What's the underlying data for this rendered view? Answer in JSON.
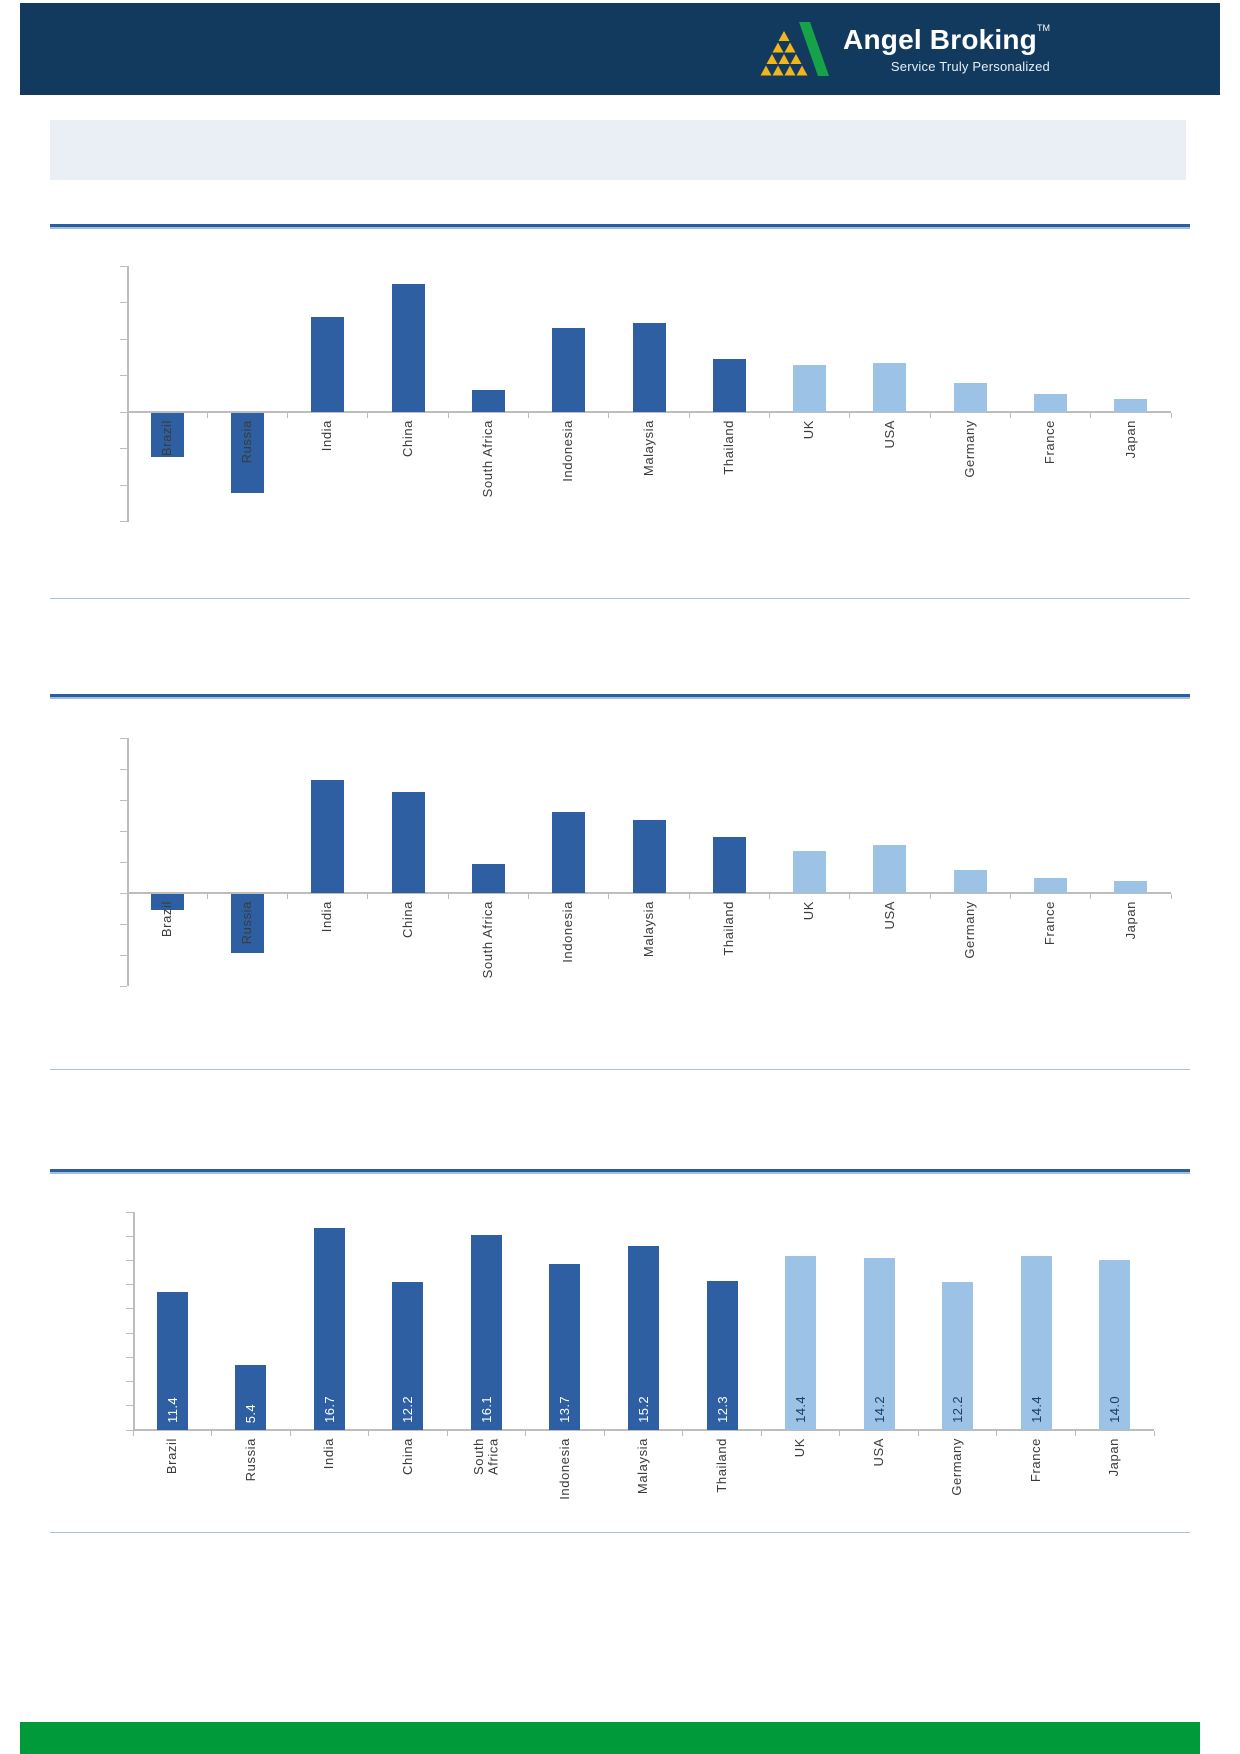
{
  "header": {
    "brand": "Angel Broking",
    "trademark": "TM",
    "tagline": "Service Truly Personalized",
    "colors": {
      "bar": "#123a5e",
      "logo_gold": "#f3b51a",
      "logo_green": "#16a348"
    }
  },
  "title_box": {
    "text": ""
  },
  "colors": {
    "bar_emerging": "#2e5fa3",
    "bar_developed": "#9cc2e5",
    "data_label_on_dark": "#ffffff",
    "data_label_on_light": "#1b3f66",
    "axis": "#bdbdbd",
    "label_text": "#3b3b3b",
    "section_rule": "#2b5c9e",
    "divider": "#a9c2d1",
    "footer_green": "#009a3b"
  },
  "chart_data": [
    {
      "type": "bar",
      "categories": [
        "Brazil",
        "Russia",
        "India",
        "China",
        "South Africa",
        "Indonesia",
        "Malaysia",
        "Thailand",
        "UK",
        "USA",
        "Germany",
        "France",
        "Japan"
      ],
      "values": [
        -1.2,
        -2.2,
        2.6,
        3.5,
        0.6,
        2.3,
        2.45,
        1.45,
        1.3,
        1.35,
        0.8,
        0.5,
        0.35
      ],
      "ylim": [
        -3,
        4
      ],
      "tick_interval": 1,
      "y_tick_labels_visible": false,
      "grid": false,
      "legend": "none",
      "data_labels": false,
      "emerging_count": 8,
      "wrap_labels": []
    },
    {
      "type": "bar",
      "categories": [
        "Brazil",
        "Russia",
        "India",
        "China",
        "South Africa",
        "Indonesia",
        "Malaysia",
        "Thailand",
        "UK",
        "USA",
        "Germany",
        "France",
        "Japan"
      ],
      "values": [
        -0.5,
        -1.9,
        3.65,
        3.25,
        0.95,
        2.6,
        2.35,
        1.8,
        1.35,
        1.55,
        0.75,
        0.5,
        0.4
      ],
      "ylim": [
        -3,
        5
      ],
      "tick_interval": 1,
      "y_tick_labels_visible": false,
      "grid": false,
      "legend": "none",
      "data_labels": false,
      "emerging_count": 8,
      "wrap_labels": []
    },
    {
      "type": "bar",
      "categories": [
        "Brazil",
        "Russia",
        "India",
        "China",
        "South Africa",
        "Indonesia",
        "Malaysia",
        "Thailand",
        "UK",
        "USA",
        "Germany",
        "France",
        "Japan"
      ],
      "values": [
        11.4,
        5.4,
        16.7,
        12.2,
        16.1,
        13.7,
        15.2,
        12.3,
        14.4,
        14.2,
        12.2,
        14.4,
        14.0
      ],
      "value_labels": [
        "11.4",
        "5.4",
        "16.7",
        "12.2",
        "16.1",
        "13.7",
        "15.2",
        "12.3",
        "14.4",
        "14.2",
        "12.2",
        "14.4",
        "14.0"
      ],
      "ylim": [
        0,
        18
      ],
      "tick_interval": 2,
      "y_tick_labels_visible": false,
      "grid": false,
      "legend": "none",
      "data_labels": true,
      "emerging_count": 8,
      "wrap_labels": [
        "South Africa"
      ]
    }
  ]
}
